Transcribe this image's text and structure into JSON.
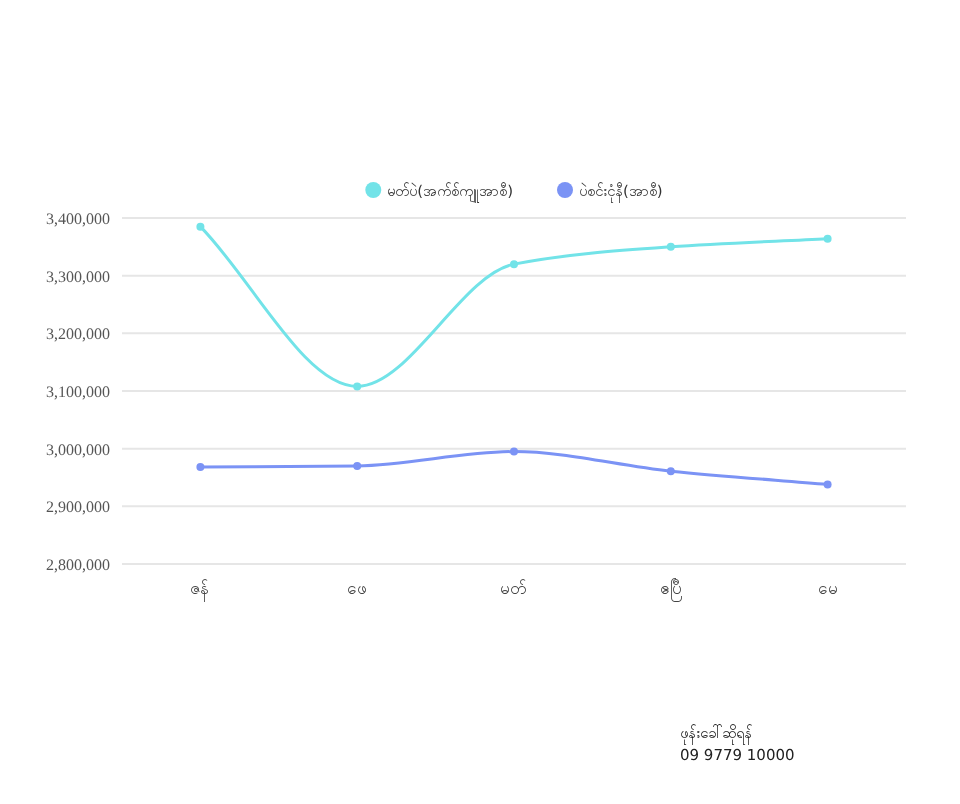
{
  "chart_data": {
    "type": "line",
    "categories": [
      "ဇန်",
      "ဖေ",
      "မတ်",
      "ဧပြီ",
      "မေ"
    ],
    "series": [
      {
        "name": "မတ်ပဲ(အက်စ်ကျူအာစီ)",
        "color": "#72e3e8",
        "values": [
          3385000,
          3108000,
          3320000,
          3350000,
          3364000
        ]
      },
      {
        "name": "ပဲစင်းငုံနီ(အာစီ)",
        "color": "#7b93f5",
        "values": [
          2968000,
          2970000,
          2995000,
          2961000,
          2938000
        ]
      }
    ],
    "ylim": [
      2800000,
      3400000
    ],
    "yticks": [
      {
        "value": 2800000,
        "label": "2,800,000"
      },
      {
        "value": 2900000,
        "label": "2,900,000"
      },
      {
        "value": 3000000,
        "label": "3,000,000"
      },
      {
        "value": 3100000,
        "label": "3,100,000"
      },
      {
        "value": 3200000,
        "label": "3,200,000"
      },
      {
        "value": 3300000,
        "label": "3,300,000"
      },
      {
        "value": 3400000,
        "label": "3,400,000"
      }
    ],
    "grid": "y",
    "legend": "top",
    "marker": "circle",
    "line_style": "solid",
    "annotations": [
      "ဖုန်းခေါ်ဆိုရန်",
      "09 9779 10000"
    ]
  }
}
